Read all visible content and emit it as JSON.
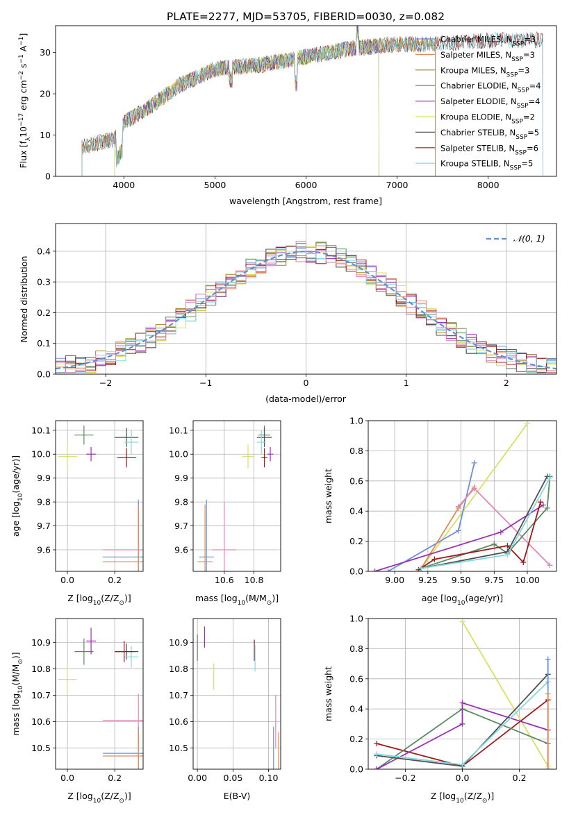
{
  "figure_title": "PLATE=2277, MJD=53705, FIBERID=0030, z=0.082",
  "colors": {
    "Chabrier MILES": "#6a8fd8",
    "Salpeter MILES": "#e08a5a",
    "Kroupa MILES": "#a08420",
    "Chabrier ELODIE": "#5a8a60",
    "Salpeter ELODIE": "#9a30b8",
    "Kroupa ELODIE": "#d8e060",
    "Chabrier STELIB": "#505050",
    "Salpeter STELIB": "#a01a1a",
    "Kroupa STELIB": "#80d8e0",
    "pink": "#e088b8",
    "normal_curve": "#5b8fd8",
    "grid": "#b0b0b0"
  },
  "chart_data": [
    {
      "id": "spectrum",
      "type": "line",
      "xlabel": "wavelength [Angstrom, rest frame]",
      "ylabel_main": "Flux [f",
      "ylabel_sub": "λ",
      "ylabel_rest": "10",
      "ylabel_exp": "−17",
      "ylabel_tail": " erg cm",
      "xlim": [
        3250,
        8750
      ],
      "ylim": [
        0,
        36.5
      ],
      "xticks": [
        "4000",
        "5000",
        "6000",
        "7000",
        "8000"
      ],
      "xtick_values": [
        4000,
        5000,
        6000,
        7000,
        8000
      ],
      "yticks": [
        "0",
        "10",
        "20",
        "30"
      ],
      "ytick_values": [
        0,
        10,
        20,
        30
      ],
      "legend_position": "top-right",
      "series": [
        {
          "label": "Chabrier MILES, N",
          "sub": "SSP",
          "tail": "=3",
          "color_key": "Chabrier MILES",
          "range": [
            3540,
            7420
          ]
        },
        {
          "label": "Salpeter MILES, N",
          "sub": "SSP",
          "tail": "=3",
          "color_key": "Salpeter MILES",
          "range": [
            3540,
            7420
          ]
        },
        {
          "label": "Kroupa MILES, N",
          "sub": "SSP",
          "tail": "=3",
          "color_key": "Kroupa MILES",
          "range": [
            3540,
            7420
          ]
        },
        {
          "label": "Chabrier ELODIE, N",
          "sub": "SSP",
          "tail": "=4",
          "color_key": "Chabrier ELODIE",
          "range": [
            3900,
            6800
          ]
        },
        {
          "label": "Salpeter ELODIE, N",
          "sub": "SSP",
          "tail": "=4",
          "color_key": "Salpeter ELODIE",
          "range": [
            3900,
            6800
          ]
        },
        {
          "label": "Kroupa ELODIE, N",
          "sub": "SSP",
          "tail": "=2",
          "color_key": "Kroupa ELODIE",
          "range": [
            3900,
            6800
          ]
        },
        {
          "label": "Chabrier STELIB, N",
          "sub": "SSP",
          "tail": "=5",
          "color_key": "Chabrier STELIB",
          "range": [
            3540,
            8600
          ]
        },
        {
          "label": "Salpeter STELIB, N",
          "sub": "SSP",
          "tail": "=6",
          "color_key": "Salpeter STELIB",
          "range": [
            3540,
            8600
          ]
        },
        {
          "label": "Kroupa STELIB, N",
          "sub": "SSP",
          "tail": "=5",
          "color_key": "Kroupa STELIB",
          "range": [
            3540,
            8600
          ]
        }
      ],
      "continuum_nodes": [
        [
          3540,
          7
        ],
        [
          3700,
          8
        ],
        [
          3900,
          9
        ],
        [
          4000,
          13
        ],
        [
          4300,
          17
        ],
        [
          4600,
          22
        ],
        [
          5000,
          26
        ],
        [
          5500,
          27
        ],
        [
          6000,
          29
        ],
        [
          6500,
          31
        ],
        [
          7000,
          32
        ],
        [
          7400,
          32
        ],
        [
          8000,
          33
        ],
        [
          8600,
          33
        ]
      ]
    },
    {
      "id": "residual_hist",
      "type": "histogram",
      "xlabel": "(data-model)/error",
      "ylabel": "Normed distribution",
      "xlim": [
        -2.5,
        2.5
      ],
      "ylim": [
        0,
        0.49
      ],
      "xticks": [
        "−2",
        "−1",
        "0",
        "1",
        "2"
      ],
      "xtick_values": [
        -2,
        -1,
        0,
        1,
        2
      ],
      "yticks": [
        "0.0",
        "0.1",
        "0.2",
        "0.3",
        "0.4"
      ],
      "ytick_values": [
        0,
        0.1,
        0.2,
        0.3,
        0.4
      ],
      "bin_width": 0.1,
      "legend_position": "top-right",
      "legend_label": "𝒩(0, 1)",
      "series_colors": [
        "Chabrier MILES",
        "Salpeter MILES",
        "Kroupa MILES",
        "Chabrier ELODIE",
        "Salpeter ELODIE",
        "Kroupa ELODIE",
        "Chabrier STELIB",
        "Salpeter STELIB",
        "Kroupa STELIB",
        "pink"
      ]
    },
    {
      "id": "age_vs_Z",
      "type": "errorbar",
      "xlabel": "Z [log",
      "xlabel_sub": "10",
      "xlabel_tail": "(Z/Z",
      "xlabel_end": ")]",
      "ylabel": "age  [log",
      "ylabel_sub": "10",
      "ylabel_tail": "(age/yr)]",
      "xlim": [
        -0.05,
        0.32
      ],
      "ylim": [
        9.51,
        10.14
      ],
      "xticks": [
        "0.0",
        "0.2"
      ],
      "xtick_values": [
        0,
        0.2
      ],
      "yticks": [
        "9.6",
        "9.7",
        "9.8",
        "9.9",
        "10.0",
        "10.1"
      ],
      "ytick_values": [
        9.6,
        9.7,
        9.8,
        9.9,
        10.0,
        10.1
      ],
      "points": [
        {
          "c": "Kroupa ELODIE",
          "x": 0.0,
          "y": 9.99,
          "ex": 0.04,
          "ey": 0.05
        },
        {
          "c": "Chabrier ELODIE",
          "x": 0.07,
          "y": 10.08,
          "ex": 0.04,
          "ey": 0.04
        },
        {
          "c": "Salpeter ELODIE",
          "x": 0.1,
          "y": 10.0,
          "ex": 0.02,
          "ey": 0.03
        },
        {
          "c": "Chabrier STELIB",
          "x": 0.25,
          "y": 10.07,
          "ex": 0.05,
          "ey": 0.04
        },
        {
          "c": "Kroupa STELIB",
          "x": 0.27,
          "y": 10.05,
          "ex": 0.03,
          "ey": 0.05
        },
        {
          "c": "Salpeter STELIB",
          "x": 0.25,
          "y": 9.985,
          "ex": 0.04,
          "ey": 0.04
        },
        {
          "c": "pink",
          "x": 0.3,
          "y": 9.6,
          "ex": 0.15,
          "ey": 0.2
        },
        {
          "c": "Chabrier MILES",
          "x": 0.3,
          "y": 9.57,
          "ex": 0.15,
          "ey": 0.24
        },
        {
          "c": "Salpeter MILES",
          "x": 0.3,
          "y": 9.55,
          "ex": 0.15,
          "ey": 0.24
        }
      ]
    },
    {
      "id": "age_vs_mass",
      "type": "errorbar",
      "xlabel": "mass [log",
      "xlabel_sub": "10",
      "xlabel_tail": "(M/M",
      "xlabel_end": ")]",
      "xlim": [
        10.39,
        10.98
      ],
      "ylim": [
        9.51,
        10.14
      ],
      "xticks": [
        "10.6",
        "10.8"
      ],
      "xtick_values": [
        10.6,
        10.8
      ],
      "yticks": [
        "9.6",
        "9.7",
        "9.8",
        "9.9",
        "10.0",
        "10.1"
      ],
      "ytick_values": [
        9.6,
        9.7,
        9.8,
        9.9,
        10.0,
        10.1
      ],
      "points": [
        {
          "c": "Kroupa ELODIE",
          "x": 10.76,
          "y": 9.99,
          "ex": 0.04,
          "ey": 0.05
        },
        {
          "c": "Chabrier ELODIE",
          "x": 10.87,
          "y": 10.08,
          "ex": 0.04,
          "ey": 0.04
        },
        {
          "c": "Salpeter ELODIE",
          "x": 10.91,
          "y": 10.0,
          "ex": 0.02,
          "ey": 0.03
        },
        {
          "c": "Chabrier STELIB",
          "x": 10.87,
          "y": 10.07,
          "ex": 0.05,
          "ey": 0.04
        },
        {
          "c": "Kroupa STELIB",
          "x": 10.85,
          "y": 10.05,
          "ex": 0.03,
          "ey": 0.05
        },
        {
          "c": "Salpeter STELIB",
          "x": 10.87,
          "y": 9.985,
          "ex": 0.02,
          "ey": 0.04
        },
        {
          "c": "pink",
          "x": 10.6,
          "y": 9.6,
          "ex": 0.08,
          "ey": 0.2
        },
        {
          "c": "Chabrier MILES",
          "x": 10.48,
          "y": 9.57,
          "ex": 0.05,
          "ey": 0.24
        },
        {
          "c": "Salpeter MILES",
          "x": 10.47,
          "y": 9.55,
          "ex": 0.05,
          "ey": 0.24
        }
      ]
    },
    {
      "id": "weight_vs_age",
      "type": "line",
      "xlabel": "age  [log",
      "xlabel_sub": "10",
      "xlabel_tail": "(age/yr)]",
      "ylabel": "mass weight",
      "xlim": [
        8.8,
        10.22
      ],
      "ylim": [
        0,
        1.0
      ],
      "xticks": [
        "9.00",
        "9.25",
        "9.50",
        "9.75",
        "10.00"
      ],
      "xtick_values": [
        9.0,
        9.25,
        9.5,
        9.75,
        10.0
      ],
      "yticks": [
        "0.0",
        "0.2",
        "0.4",
        "0.6",
        "0.8",
        "1.0"
      ],
      "ytick_values": [
        0,
        0.2,
        0.4,
        0.6,
        0.8,
        1.0
      ],
      "series": [
        {
          "c": "Kroupa ELODIE",
          "pts": [
            [
              9.2,
              0.02
            ],
            [
              10.0,
              0.98
            ]
          ]
        },
        {
          "c": "Chabrier MILES",
          "pts": [
            [
              8.95,
              0.0
            ],
            [
              9.48,
              0.27
            ],
            [
              9.6,
              0.72
            ]
          ]
        },
        {
          "c": "Salpeter MILES",
          "pts": [
            [
              9.2,
              0.02
            ],
            [
              9.48,
              0.42
            ],
            [
              9.6,
              0.56
            ]
          ]
        },
        {
          "c": "pink",
          "pts": [
            [
              9.48,
              0.43
            ],
            [
              9.6,
              0.55
            ],
            [
              10.17,
              0.04
            ]
          ]
        },
        {
          "c": "Salpeter ELODIE",
          "pts": [
            [
              8.85,
              0.0
            ],
            [
              9.8,
              0.26
            ],
            [
              10.12,
              0.44
            ]
          ]
        },
        {
          "c": "Chabrier ELODIE",
          "pts": [
            [
              9.2,
              0.02
            ],
            [
              9.75,
              0.18
            ],
            [
              9.85,
              0.12
            ],
            [
              10.15,
              0.42
            ],
            [
              10.17,
              0.63
            ]
          ]
        },
        {
          "c": "Chabrier STELIB",
          "pts": [
            [
              9.2,
              0.02
            ],
            [
              9.85,
              0.13
            ],
            [
              10.15,
              0.63
            ]
          ]
        },
        {
          "c": "Salpeter STELIB",
          "pts": [
            [
              9.18,
              0.01
            ],
            [
              9.3,
              0.08
            ],
            [
              9.85,
              0.17
            ],
            [
              9.97,
              0.06
            ],
            [
              10.1,
              0.46
            ]
          ]
        },
        {
          "c": "Kroupa STELIB",
          "pts": [
            [
              9.2,
              0.02
            ],
            [
              9.85,
              0.11
            ],
            [
              10.17,
              0.62
            ]
          ]
        }
      ]
    },
    {
      "id": "mass_vs_Z",
      "type": "errorbar",
      "ylabel": "mass [log",
      "ylabel_sub": "10",
      "ylabel_tail": "(M/M",
      "ylabel_end": ")]",
      "xlabel": "Z [log",
      "xlabel_sub": "10",
      "xlabel_tail": "(Z/Z",
      "xlabel_end": ")]",
      "xlim": [
        -0.05,
        0.32
      ],
      "ylim": [
        10.42,
        10.99
      ],
      "xticks": [
        "0.0",
        "0.2"
      ],
      "xtick_values": [
        0,
        0.2
      ],
      "yticks": [
        "10.5",
        "10.6",
        "10.7",
        "10.8",
        "10.9"
      ],
      "ytick_values": [
        10.5,
        10.6,
        10.7,
        10.8,
        10.9
      ],
      "points": [
        {
          "c": "Kroupa ELODIE",
          "x": 0.0,
          "y": 10.76,
          "ex": 0.04,
          "ey": 0.05
        },
        {
          "c": "Chabrier ELODIE",
          "x": 0.07,
          "y": 10.865,
          "ex": 0.04,
          "ey": 0.05
        },
        {
          "c": "Salpeter ELODIE",
          "x": 0.1,
          "y": 10.905,
          "ex": 0.02,
          "ey": 0.05
        },
        {
          "c": "Chabrier STELIB",
          "x": 0.25,
          "y": 10.865,
          "ex": 0.05,
          "ey": 0.03
        },
        {
          "c": "Kroupa STELIB",
          "x": 0.27,
          "y": 10.845,
          "ex": 0.03,
          "ey": 0.04
        },
        {
          "c": "Salpeter STELIB",
          "x": 0.24,
          "y": 10.865,
          "ex": 0.04,
          "ey": 0.04
        },
        {
          "c": "pink",
          "x": 0.3,
          "y": 10.605,
          "ex": 0.15,
          "ey": 0.1
        },
        {
          "c": "Chabrier MILES",
          "x": 0.3,
          "y": 10.48,
          "ex": 0.15,
          "ey": 0.1
        },
        {
          "c": "Salpeter MILES",
          "x": 0.3,
          "y": 10.47,
          "ex": 0.15,
          "ey": 0.1
        }
      ]
    },
    {
      "id": "mass_vs_EBV",
      "type": "errorbar",
      "xlabel": "E(B-V)",
      "xlim": [
        -0.006,
        0.117
      ],
      "ylim": [
        10.42,
        10.99
      ],
      "xticks": [
        "0.00",
        "0.05",
        "0.10"
      ],
      "xtick_values": [
        0,
        0.05,
        0.1
      ],
      "yticks": [
        "10.5",
        "10.6",
        "10.7",
        "10.8",
        "10.9"
      ],
      "ytick_values": [
        10.5,
        10.6,
        10.7,
        10.8,
        10.9
      ],
      "points": [
        {
          "c": "Chabrier ELODIE",
          "x": 0.0,
          "y": 10.88,
          "ex": 0,
          "ey": 0.05
        },
        {
          "c": "Salpeter ELODIE",
          "x": 0.01,
          "y": 10.92,
          "ex": 0,
          "ey": 0.04
        },
        {
          "c": "Kroupa ELODIE",
          "x": 0.023,
          "y": 10.77,
          "ex": 0,
          "ey": 0.05
        },
        {
          "c": "Salpeter STELIB",
          "x": 0.08,
          "y": 10.87,
          "ex": 0,
          "ey": 0.04
        },
        {
          "c": "Kroupa STELIB",
          "x": 0.081,
          "y": 10.84,
          "ex": 0,
          "ey": 0.05
        },
        {
          "c": "pink",
          "x": 0.11,
          "y": 10.6,
          "ex": 0,
          "ey": 0.1
        },
        {
          "c": "Chabrier MILES",
          "x": 0.107,
          "y": 10.48,
          "ex": 0,
          "ey": 0.1
        },
        {
          "c": "Salpeter MILES",
          "x": 0.114,
          "y": 10.46,
          "ex": 0,
          "ey": 0.1
        }
      ]
    },
    {
      "id": "weight_vs_Z",
      "type": "line",
      "xlabel": "Z [log",
      "xlabel_sub": "10",
      "xlabel_tail": "(Z/Z",
      "xlabel_end": ")]",
      "ylabel": "mass weight",
      "xlim": [
        -0.33,
        0.33
      ],
      "ylim": [
        0,
        1.0
      ],
      "xticks": [
        "−0.2",
        "0.0",
        "0.2"
      ],
      "xtick_values": [
        -0.2,
        0,
        0.2
      ],
      "yticks": [
        "0.0",
        "0.2",
        "0.4",
        "0.6",
        "0.8",
        "1.0"
      ],
      "ytick_values": [
        0,
        0.2,
        0.4,
        0.6,
        0.8,
        1.0
      ],
      "series": [
        {
          "c": "Kroupa ELODIE",
          "pts": [
            [
              0.0,
              0.98
            ],
            [
              0.3,
              0.02
            ]
          ]
        },
        {
          "c": "Salpeter STELIB",
          "pts": [
            [
              -0.3,
              0.17
            ],
            [
              0.0,
              0.02
            ],
            [
              0.3,
              0.46
            ]
          ]
        },
        {
          "c": "Chabrier ELODIE",
          "pts": [
            [
              -0.3,
              0.0
            ],
            [
              0.0,
              0.4
            ],
            [
              0.3,
              0.17
            ]
          ]
        },
        {
          "c": "Salpeter ELODIE",
          "pts": [
            [
              -0.3,
              0.0
            ],
            [
              0.0,
              0.3
            ],
            [
              0.0,
              0.44
            ],
            [
              0.3,
              0.26
            ]
          ]
        },
        {
          "c": "Chabrier STELIB",
          "pts": [
            [
              -0.3,
              0.09
            ],
            [
              0.0,
              0.02
            ],
            [
              0.3,
              0.63
            ]
          ]
        },
        {
          "c": "Kroupa STELIB",
          "pts": [
            [
              -0.3,
              0.1
            ],
            [
              0.0,
              0.03
            ],
            [
              0.3,
              0.58
            ]
          ]
        },
        {
          "c": "Chabrier MILES",
          "pts": [
            [
              0.3,
              0.0
            ],
            [
              0.3,
              0.73
            ]
          ]
        },
        {
          "c": "Salpeter MILES",
          "pts": [
            [
              0.3,
              0.0
            ],
            [
              0.3,
              0.5
            ]
          ]
        }
      ]
    }
  ]
}
